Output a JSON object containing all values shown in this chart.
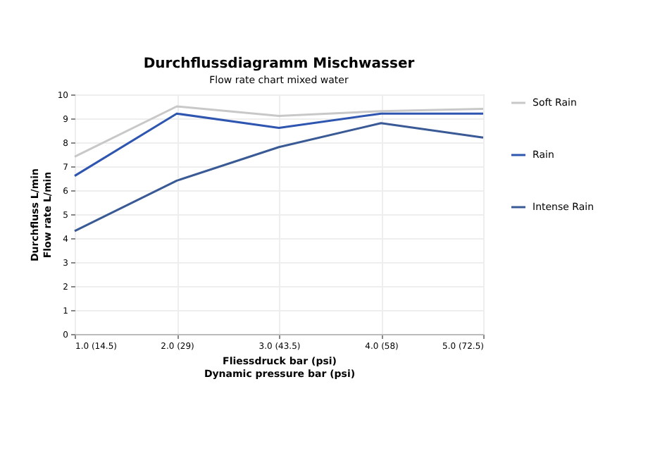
{
  "chart_data": {
    "type": "line",
    "title": "Durchflussdiagramm Mischwasser",
    "subtitle": "Flow rate chart mixed water",
    "xlabel": "Fliessdruck bar (psi)\nDynamic pressure bar (psi)",
    "ylabel": "Durchfluss L/min\nFlow rate L/min",
    "categories": [
      "1.0 (14.5)",
      "2.0 (29)",
      "3.0 (43.5)",
      "4.0 (58)",
      "5.0 (72.5)"
    ],
    "series": [
      {
        "name": "Soft Rain",
        "color": "#c8c8c8",
        "values": [
          7.4,
          9.5,
          9.1,
          9.3,
          9.4
        ]
      },
      {
        "name": "Rain",
        "color": "#2e56b0",
        "values": [
          6.6,
          9.2,
          8.6,
          9.2,
          9.2
        ]
      },
      {
        "name": "Intense Rain",
        "color": "#3a5a96",
        "values": [
          4.3,
          6.4,
          7.8,
          8.8,
          8.2
        ]
      }
    ],
    "ylim": [
      0,
      10
    ],
    "yticks": [
      0,
      1,
      2,
      3,
      4,
      5,
      6,
      7,
      8,
      9,
      10
    ],
    "grid": true,
    "legend": "right",
    "marker": "none",
    "line_style": "solid"
  }
}
